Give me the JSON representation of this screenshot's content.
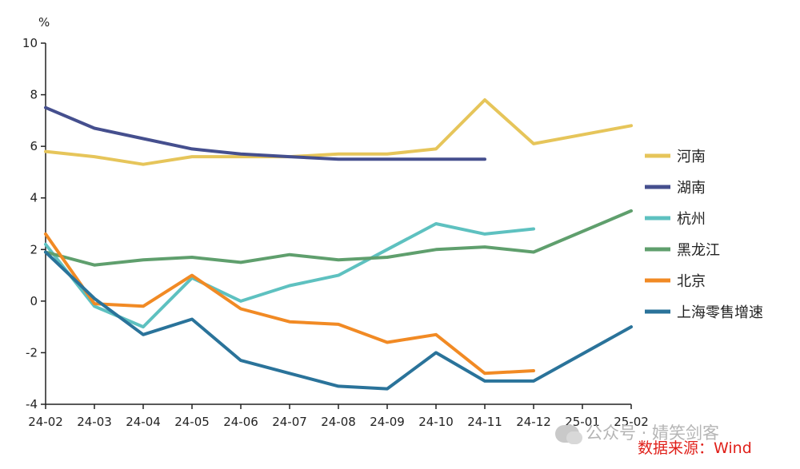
{
  "chart_data": {
    "type": "line",
    "ylabel": "%",
    "ylim": [
      -4,
      10
    ],
    "yticks": [
      -4,
      -2,
      0,
      2,
      4,
      6,
      8,
      10
    ],
    "categories": [
      "24-02",
      "24-03",
      "24-04",
      "24-05",
      "24-06",
      "24-07",
      "24-08",
      "24-09",
      "24-10",
      "24-11",
      "24-12",
      "25-01",
      "25-02"
    ],
    "legend_position": "right",
    "grid": false,
    "series": [
      {
        "name": "河南",
        "color": "#e6c55a",
        "values": [
          5.8,
          5.6,
          5.3,
          5.6,
          5.6,
          5.6,
          5.7,
          5.7,
          5.9,
          7.8,
          6.1,
          null,
          6.8
        ]
      },
      {
        "name": "湖南",
        "color": "#454f8e",
        "values": [
          7.5,
          6.7,
          6.3,
          5.9,
          5.7,
          5.6,
          5.5,
          5.5,
          5.5,
          5.5,
          null,
          null,
          null
        ]
      },
      {
        "name": "杭州",
        "color": "#5ec1c0",
        "values": [
          2.2,
          -0.2,
          -1.0,
          0.9,
          0.0,
          0.6,
          1.0,
          2.0,
          3.0,
          2.6,
          2.8,
          null,
          null
        ]
      },
      {
        "name": "黑龙江",
        "color": "#5f9f6d",
        "values": [
          1.9,
          1.4,
          1.6,
          1.7,
          1.5,
          1.8,
          1.6,
          1.7,
          2.0,
          2.1,
          1.9,
          null,
          3.5
        ]
      },
      {
        "name": "北京",
        "color": "#f18a24",
        "values": [
          2.6,
          -0.1,
          -0.2,
          1.0,
          -0.3,
          -0.8,
          -0.9,
          -1.6,
          -1.3,
          -2.8,
          -2.7,
          null,
          null
        ]
      },
      {
        "name": "上海零售增速",
        "color": "#2a739a",
        "values": [
          1.9,
          0.1,
          -1.3,
          -0.7,
          -2.3,
          -2.8,
          -3.3,
          -3.4,
          -2.0,
          -3.1,
          -3.1,
          null,
          -1.0
        ]
      }
    ]
  },
  "watermark": "公众号 · 婧笑剑客",
  "source": "数据来源：Wind"
}
